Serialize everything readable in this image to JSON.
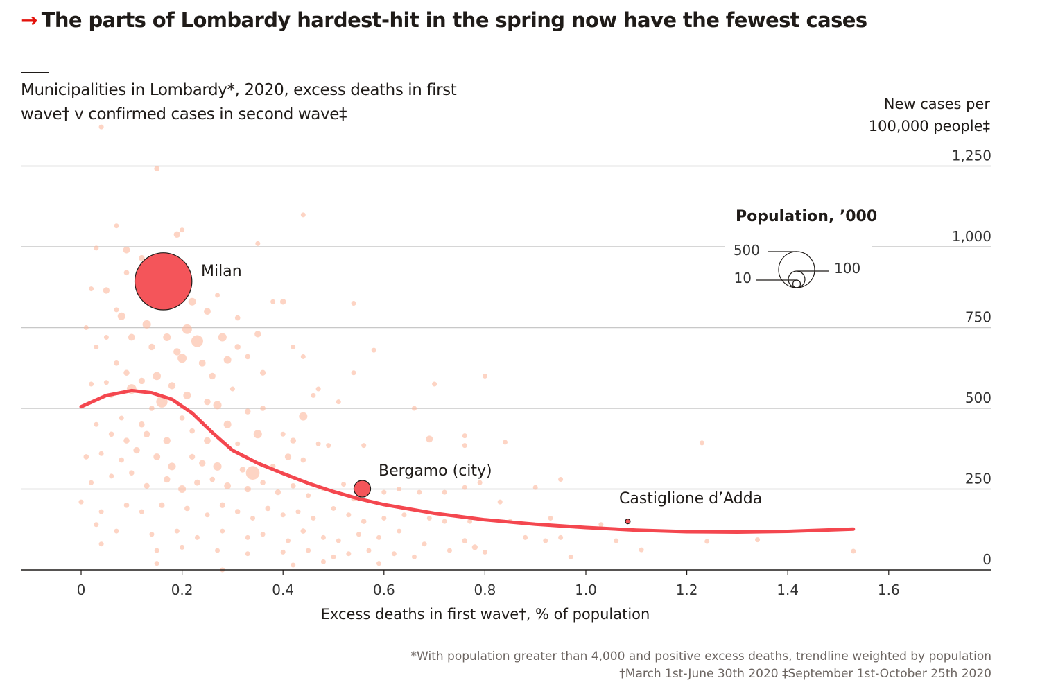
{
  "title": "The parts of Lombardy hardest-hit in the spring now have the fewest cases",
  "title_icon": "arrow-right-icon",
  "subtitle": "Municipalities in Lombardy*, 2020, excess deaths in first wave† v confirmed cases in second wave‡",
  "footnotes": [
    "*With population greater than 4,000 and positive excess deaths, trendline weighted by population",
    "†March 1st-June 30th 2020 ‡September 1st-October 25th 2020"
  ],
  "colors": {
    "accent": "#e3120b",
    "bubble": "#fbb79c",
    "highlight": "#f4555a",
    "trend": "#f4474f",
    "grid": "#c8c8c8"
  },
  "chart_data": {
    "type": "scatter",
    "title": "Municipalities in Lombardy*, 2020, excess deaths in first wave† v confirmed cases in second wave‡",
    "xlabel": "Excess deaths in first wave†, % of population",
    "ylabel": "New cases per 100,000 people‡",
    "xlim": [
      -0.12,
      1.75
    ],
    "ylim": [
      0,
      1250
    ],
    "x_ticks": [
      "0",
      "0.2",
      "0.4",
      "0.6",
      "0.8",
      "1.0",
      "1.2",
      "1.4",
      "1.6"
    ],
    "x_tick_values": [
      0,
      0.2,
      0.4,
      0.6,
      0.8,
      1.0,
      1.2,
      1.4,
      1.6
    ],
    "y_ticks": [
      "0",
      "250",
      "500",
      "750",
      "1,000",
      "1,250"
    ],
    "y_tick_values": [
      0,
      250,
      500,
      750,
      1000,
      1250
    ],
    "grid": true,
    "size_legend": {
      "title": "Population, ’000",
      "values": [
        500,
        100,
        10
      ],
      "labels": [
        "500",
        "100",
        "10"
      ],
      "placement": "right"
    },
    "highlights": [
      {
        "label": "Milan",
        "x": 0.163,
        "y": 893,
        "pop": 1400
      },
      {
        "label": "Bergamo (city)",
        "x": 0.557,
        "y": 251,
        "pop": 120
      },
      {
        "label": "Castiglione d’Adda",
        "x": 1.083,
        "y": 150,
        "pop": 4.7
      }
    ],
    "trendline": [
      [
        0,
        505
      ],
      [
        0.05,
        540
      ],
      [
        0.1,
        555
      ],
      [
        0.14,
        548
      ],
      [
        0.18,
        528
      ],
      [
        0.22,
        485
      ],
      [
        0.26,
        425
      ],
      [
        0.3,
        370
      ],
      [
        0.35,
        330
      ],
      [
        0.4,
        298
      ],
      [
        0.45,
        268
      ],
      [
        0.5,
        242
      ],
      [
        0.55,
        220
      ],
      [
        0.6,
        202
      ],
      [
        0.7,
        175
      ],
      [
        0.8,
        155
      ],
      [
        0.9,
        141
      ],
      [
        1.0,
        131
      ],
      [
        1.1,
        123
      ],
      [
        1.2,
        118
      ],
      [
        1.3,
        117
      ],
      [
        1.4,
        119
      ],
      [
        1.53,
        126
      ]
    ],
    "points": [
      [
        0.04,
        1371,
        5
      ],
      [
        0.15,
        1242,
        12
      ],
      [
        0.44,
        1099,
        4
      ],
      [
        0.07,
        1065,
        8
      ],
      [
        0.19,
        1038,
        18
      ],
      [
        0.2,
        1052,
        10
      ],
      [
        0.03,
        996,
        5
      ],
      [
        0.09,
        990,
        20
      ],
      [
        0.35,
        1010,
        6
      ],
      [
        0.12,
        965,
        15
      ],
      [
        0.09,
        920,
        12
      ],
      [
        0.05,
        865,
        18
      ],
      [
        0.02,
        870,
        10
      ],
      [
        0.07,
        805,
        8
      ],
      [
        0.27,
        850,
        9
      ],
      [
        0.22,
        830,
        25
      ],
      [
        0.25,
        800,
        20
      ],
      [
        0.31,
        780,
        12
      ],
      [
        0.38,
        830,
        8
      ],
      [
        0.4,
        830,
        15
      ],
      [
        0.54,
        825,
        10
      ],
      [
        0.08,
        785,
        25
      ],
      [
        0.13,
        760,
        30
      ],
      [
        0.1,
        720,
        20
      ],
      [
        0.17,
        720,
        25
      ],
      [
        0.21,
        745,
        40
      ],
      [
        0.23,
        708,
        60
      ],
      [
        0.28,
        720,
        30
      ],
      [
        0.31,
        690,
        15
      ],
      [
        0.35,
        730,
        18
      ],
      [
        0.33,
        660,
        12
      ],
      [
        0.29,
        650,
        25
      ],
      [
        0.05,
        720,
        10
      ],
      [
        0.01,
        750,
        6
      ],
      [
        0.03,
        690,
        8
      ],
      [
        0.14,
        690,
        18
      ],
      [
        0.19,
        675,
        22
      ],
      [
        0.2,
        655,
        35
      ],
      [
        0.24,
        640,
        20
      ],
      [
        0.26,
        600,
        18
      ],
      [
        0.36,
        610,
        14
      ],
      [
        0.42,
        690,
        5
      ],
      [
        0.58,
        680,
        8
      ],
      [
        0.44,
        660,
        5
      ],
      [
        0.07,
        640,
        12
      ],
      [
        0.09,
        610,
        15
      ],
      [
        0.12,
        585,
        18
      ],
      [
        0.15,
        600,
        28
      ],
      [
        0.18,
        570,
        22
      ],
      [
        0.1,
        560,
        40
      ],
      [
        0.16,
        520,
        55
      ],
      [
        0.21,
        540,
        25
      ],
      [
        0.25,
        520,
        18
      ],
      [
        0.3,
        560,
        10
      ],
      [
        0.02,
        575,
        10
      ],
      [
        0.05,
        580,
        8
      ],
      [
        0.06,
        540,
        10
      ],
      [
        0.14,
        500,
        12
      ],
      [
        0.08,
        470,
        10
      ],
      [
        0.12,
        450,
        15
      ],
      [
        0.2,
        470,
        12
      ],
      [
        0.27,
        510,
        30
      ],
      [
        0.33,
        490,
        15
      ],
      [
        0.36,
        500,
        12
      ],
      [
        0.44,
        475,
        30
      ],
      [
        0.46,
        540,
        10
      ],
      [
        0.47,
        560,
        6
      ],
      [
        0.51,
        520,
        5
      ],
      [
        0.54,
        610,
        5
      ],
      [
        0.7,
        575,
        6
      ],
      [
        0.8,
        600,
        6
      ],
      [
        0.66,
        500,
        5
      ],
      [
        0.03,
        450,
        8
      ],
      [
        0.06,
        420,
        12
      ],
      [
        0.09,
        400,
        15
      ],
      [
        0.13,
        420,
        18
      ],
      [
        0.17,
        400,
        22
      ],
      [
        0.22,
        430,
        12
      ],
      [
        0.25,
        400,
        20
      ],
      [
        0.29,
        450,
        25
      ],
      [
        0.35,
        420,
        30
      ],
      [
        0.31,
        390,
        10
      ],
      [
        0.4,
        420,
        8
      ],
      [
        0.42,
        400,
        15
      ],
      [
        0.47,
        390,
        8
      ],
      [
        0.01,
        350,
        12
      ],
      [
        0.04,
        360,
        10
      ],
      [
        0.08,
        340,
        12
      ],
      [
        0.11,
        370,
        18
      ],
      [
        0.15,
        350,
        20
      ],
      [
        0.18,
        320,
        25
      ],
      [
        0.22,
        350,
        14
      ],
      [
        0.24,
        330,
        18
      ],
      [
        0.27,
        320,
        30
      ],
      [
        0.32,
        310,
        15
      ],
      [
        0.34,
        300,
        80
      ],
      [
        0.38,
        320,
        12
      ],
      [
        0.41,
        350,
        18
      ],
      [
        0.44,
        340,
        12
      ],
      [
        0.49,
        385,
        10
      ],
      [
        0.56,
        385,
        10
      ],
      [
        0.69,
        405,
        20
      ],
      [
        0.76,
        415,
        8
      ],
      [
        0.76,
        385,
        6
      ],
      [
        0.84,
        395,
        6
      ],
      [
        1.23,
        393,
        8
      ],
      [
        0.02,
        270,
        6
      ],
      [
        0.06,
        290,
        8
      ],
      [
        0.1,
        300,
        12
      ],
      [
        0.13,
        260,
        14
      ],
      [
        0.17,
        280,
        18
      ],
      [
        0.2,
        250,
        25
      ],
      [
        0.23,
        270,
        16
      ],
      [
        0.26,
        280,
        12
      ],
      [
        0.29,
        260,
        20
      ],
      [
        0.33,
        250,
        18
      ],
      [
        0.36,
        270,
        12
      ],
      [
        0.39,
        240,
        14
      ],
      [
        0.42,
        260,
        12
      ],
      [
        0.45,
        230,
        10
      ],
      [
        0.48,
        250,
        8
      ],
      [
        0.52,
        265,
        10
      ],
      [
        0.54,
        220,
        12
      ],
      [
        0.6,
        240,
        8
      ],
      [
        0.63,
        250,
        10
      ],
      [
        0.67,
        240,
        6
      ],
      [
        0.72,
        240,
        8
      ],
      [
        0.76,
        255,
        10
      ],
      [
        0.79,
        270,
        6
      ],
      [
        0.83,
        210,
        8
      ],
      [
        0.9,
        255,
        5
      ],
      [
        0.95,
        280,
        6
      ],
      [
        0.0,
        210,
        8
      ],
      [
        0.04,
        180,
        6
      ],
      [
        0.09,
        200,
        12
      ],
      [
        0.12,
        180,
        10
      ],
      [
        0.16,
        200,
        14
      ],
      [
        0.21,
        190,
        12
      ],
      [
        0.25,
        170,
        10
      ],
      [
        0.28,
        200,
        14
      ],
      [
        0.31,
        180,
        12
      ],
      [
        0.34,
        160,
        10
      ],
      [
        0.37,
        190,
        12
      ],
      [
        0.4,
        170,
        8
      ],
      [
        0.43,
        180,
        10
      ],
      [
        0.46,
        160,
        8
      ],
      [
        0.5,
        190,
        10
      ],
      [
        0.53,
        170,
        8
      ],
      [
        0.56,
        150,
        12
      ],
      [
        0.6,
        160,
        8
      ],
      [
        0.64,
        170,
        10
      ],
      [
        0.69,
        160,
        6
      ],
      [
        0.72,
        150,
        8
      ],
      [
        0.77,
        150,
        6
      ],
      [
        0.85,
        150,
        5
      ],
      [
        0.93,
        160,
        5
      ],
      [
        1.03,
        140,
        5
      ],
      [
        0.03,
        140,
        6
      ],
      [
        0.07,
        120,
        8
      ],
      [
        0.14,
        110,
        10
      ],
      [
        0.19,
        120,
        8
      ],
      [
        0.23,
        100,
        10
      ],
      [
        0.28,
        120,
        8
      ],
      [
        0.33,
        100,
        10
      ],
      [
        0.36,
        110,
        8
      ],
      [
        0.41,
        90,
        10
      ],
      [
        0.44,
        120,
        12
      ],
      [
        0.48,
        100,
        8
      ],
      [
        0.51,
        90,
        10
      ],
      [
        0.55,
        110,
        8
      ],
      [
        0.59,
        100,
        10
      ],
      [
        0.63,
        120,
        8
      ],
      [
        0.68,
        80,
        6
      ],
      [
        0.76,
        90,
        12
      ],
      [
        0.78,
        70,
        14
      ],
      [
        0.88,
        100,
        6
      ],
      [
        0.92,
        90,
        8
      ],
      [
        0.95,
        100,
        8
      ],
      [
        1.06,
        90,
        5
      ],
      [
        1.24,
        88,
        8
      ],
      [
        1.34,
        93,
        5
      ],
      [
        0.04,
        80,
        6
      ],
      [
        0.15,
        60,
        6
      ],
      [
        0.2,
        70,
        6
      ],
      [
        0.27,
        60,
        8
      ],
      [
        0.33,
        50,
        10
      ],
      [
        0.4,
        55,
        8
      ],
      [
        0.45,
        60,
        8
      ],
      [
        0.5,
        40,
        10
      ],
      [
        0.53,
        50,
        8
      ],
      [
        0.57,
        60,
        8
      ],
      [
        0.62,
        50,
        6
      ],
      [
        0.66,
        40,
        6
      ],
      [
        0.73,
        60,
        6
      ],
      [
        0.8,
        55,
        6
      ],
      [
        0.97,
        40,
        5
      ],
      [
        1.11,
        62,
        5
      ],
      [
        1.53,
        58,
        5
      ],
      [
        0.15,
        20,
        5
      ],
      [
        0.28,
        0,
        6
      ],
      [
        0.42,
        15,
        6
      ],
      [
        0.48,
        25,
        6
      ],
      [
        0.59,
        20,
        8
      ]
    ]
  }
}
